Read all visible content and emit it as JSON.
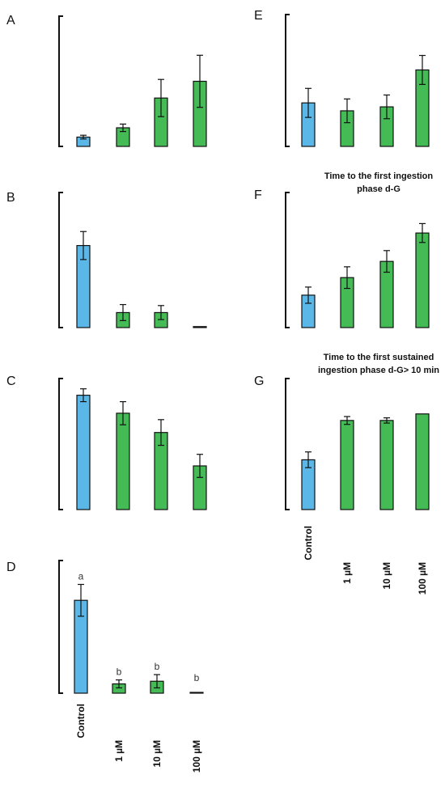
{
  "colors": {
    "control": "#5ab7e8",
    "treatment": "#45bb55",
    "outline": "#111111"
  },
  "chart_data": [
    {
      "panel": "A",
      "type": "bar",
      "title": [],
      "categories": [
        "Control",
        "1 µM",
        "10 µM",
        "100 µM"
      ],
      "values": [
        10,
        20,
        52,
        70
      ],
      "errors": [
        2,
        4,
        20,
        28
      ],
      "ylim": [
        0,
        140
      ],
      "sig_labels": [],
      "xlabel": "",
      "ylabel": ""
    },
    {
      "panel": "B",
      "type": "bar",
      "title": [],
      "categories": [
        "Control",
        "1 µM",
        "10 µM",
        "100 µM"
      ],
      "values": [
        82,
        15,
        15,
        1
      ],
      "errors": [
        14,
        8,
        7,
        0
      ],
      "ylim": [
        0,
        135
      ],
      "sig_labels": [],
      "xlabel": "",
      "ylabel": ""
    },
    {
      "panel": "C",
      "type": "bar",
      "title": [],
      "categories": [
        "Control",
        "1 µM",
        "10 µM",
        "100 µM"
      ],
      "values": [
        89,
        75,
        60,
        34
      ],
      "errors": [
        5,
        9,
        10,
        9
      ],
      "ylim": [
        0,
        102
      ],
      "sig_labels": [],
      "xlabel": "",
      "ylabel": ""
    },
    {
      "panel": "D",
      "type": "bar",
      "title": [],
      "categories": [
        "Control",
        "1 µM",
        "10 µM",
        "100 µM"
      ],
      "values": [
        70,
        7,
        9,
        0
      ],
      "errors": [
        12,
        3,
        5,
        0
      ],
      "ylim": [
        0,
        100
      ],
      "sig_labels": [
        "a",
        "b",
        "b",
        "b"
      ],
      "xlabel": "",
      "ylabel": ""
    },
    {
      "panel": "E",
      "type": "bar",
      "title": [],
      "categories": [
        "Control",
        "1 µM",
        "10 µM",
        "100 µM"
      ],
      "values": [
        33,
        27,
        30,
        58
      ],
      "errors": [
        11,
        9,
        9,
        11
      ],
      "ylim": [
        0,
        100
      ],
      "sig_labels": [],
      "xlabel": "",
      "ylabel": ""
    },
    {
      "panel": "F",
      "type": "bar",
      "title": [
        "Time to the first ingestion",
        "phase d-G"
      ],
      "categories": [
        "Control",
        "1 µM",
        "10 µM",
        "100 µM"
      ],
      "values": [
        24,
        37,
        49,
        70
      ],
      "errors": [
        6,
        8,
        8,
        7
      ],
      "ylim": [
        0,
        100
      ],
      "sig_labels": [],
      "xlabel": "",
      "ylabel": ""
    },
    {
      "panel": "G",
      "type": "bar",
      "title": [
        "Time to the first sustained",
        "ingestion phase  d-G> 10 min"
      ],
      "categories": [
        "Control",
        "1 µM",
        "10 µM",
        "100 µM"
      ],
      "values": [
        38,
        68,
        68,
        73
      ],
      "errors": [
        6,
        3,
        2,
        0
      ],
      "ylim": [
        0,
        100
      ],
      "sig_labels": [],
      "xlabel": "",
      "ylabel": ""
    }
  ]
}
